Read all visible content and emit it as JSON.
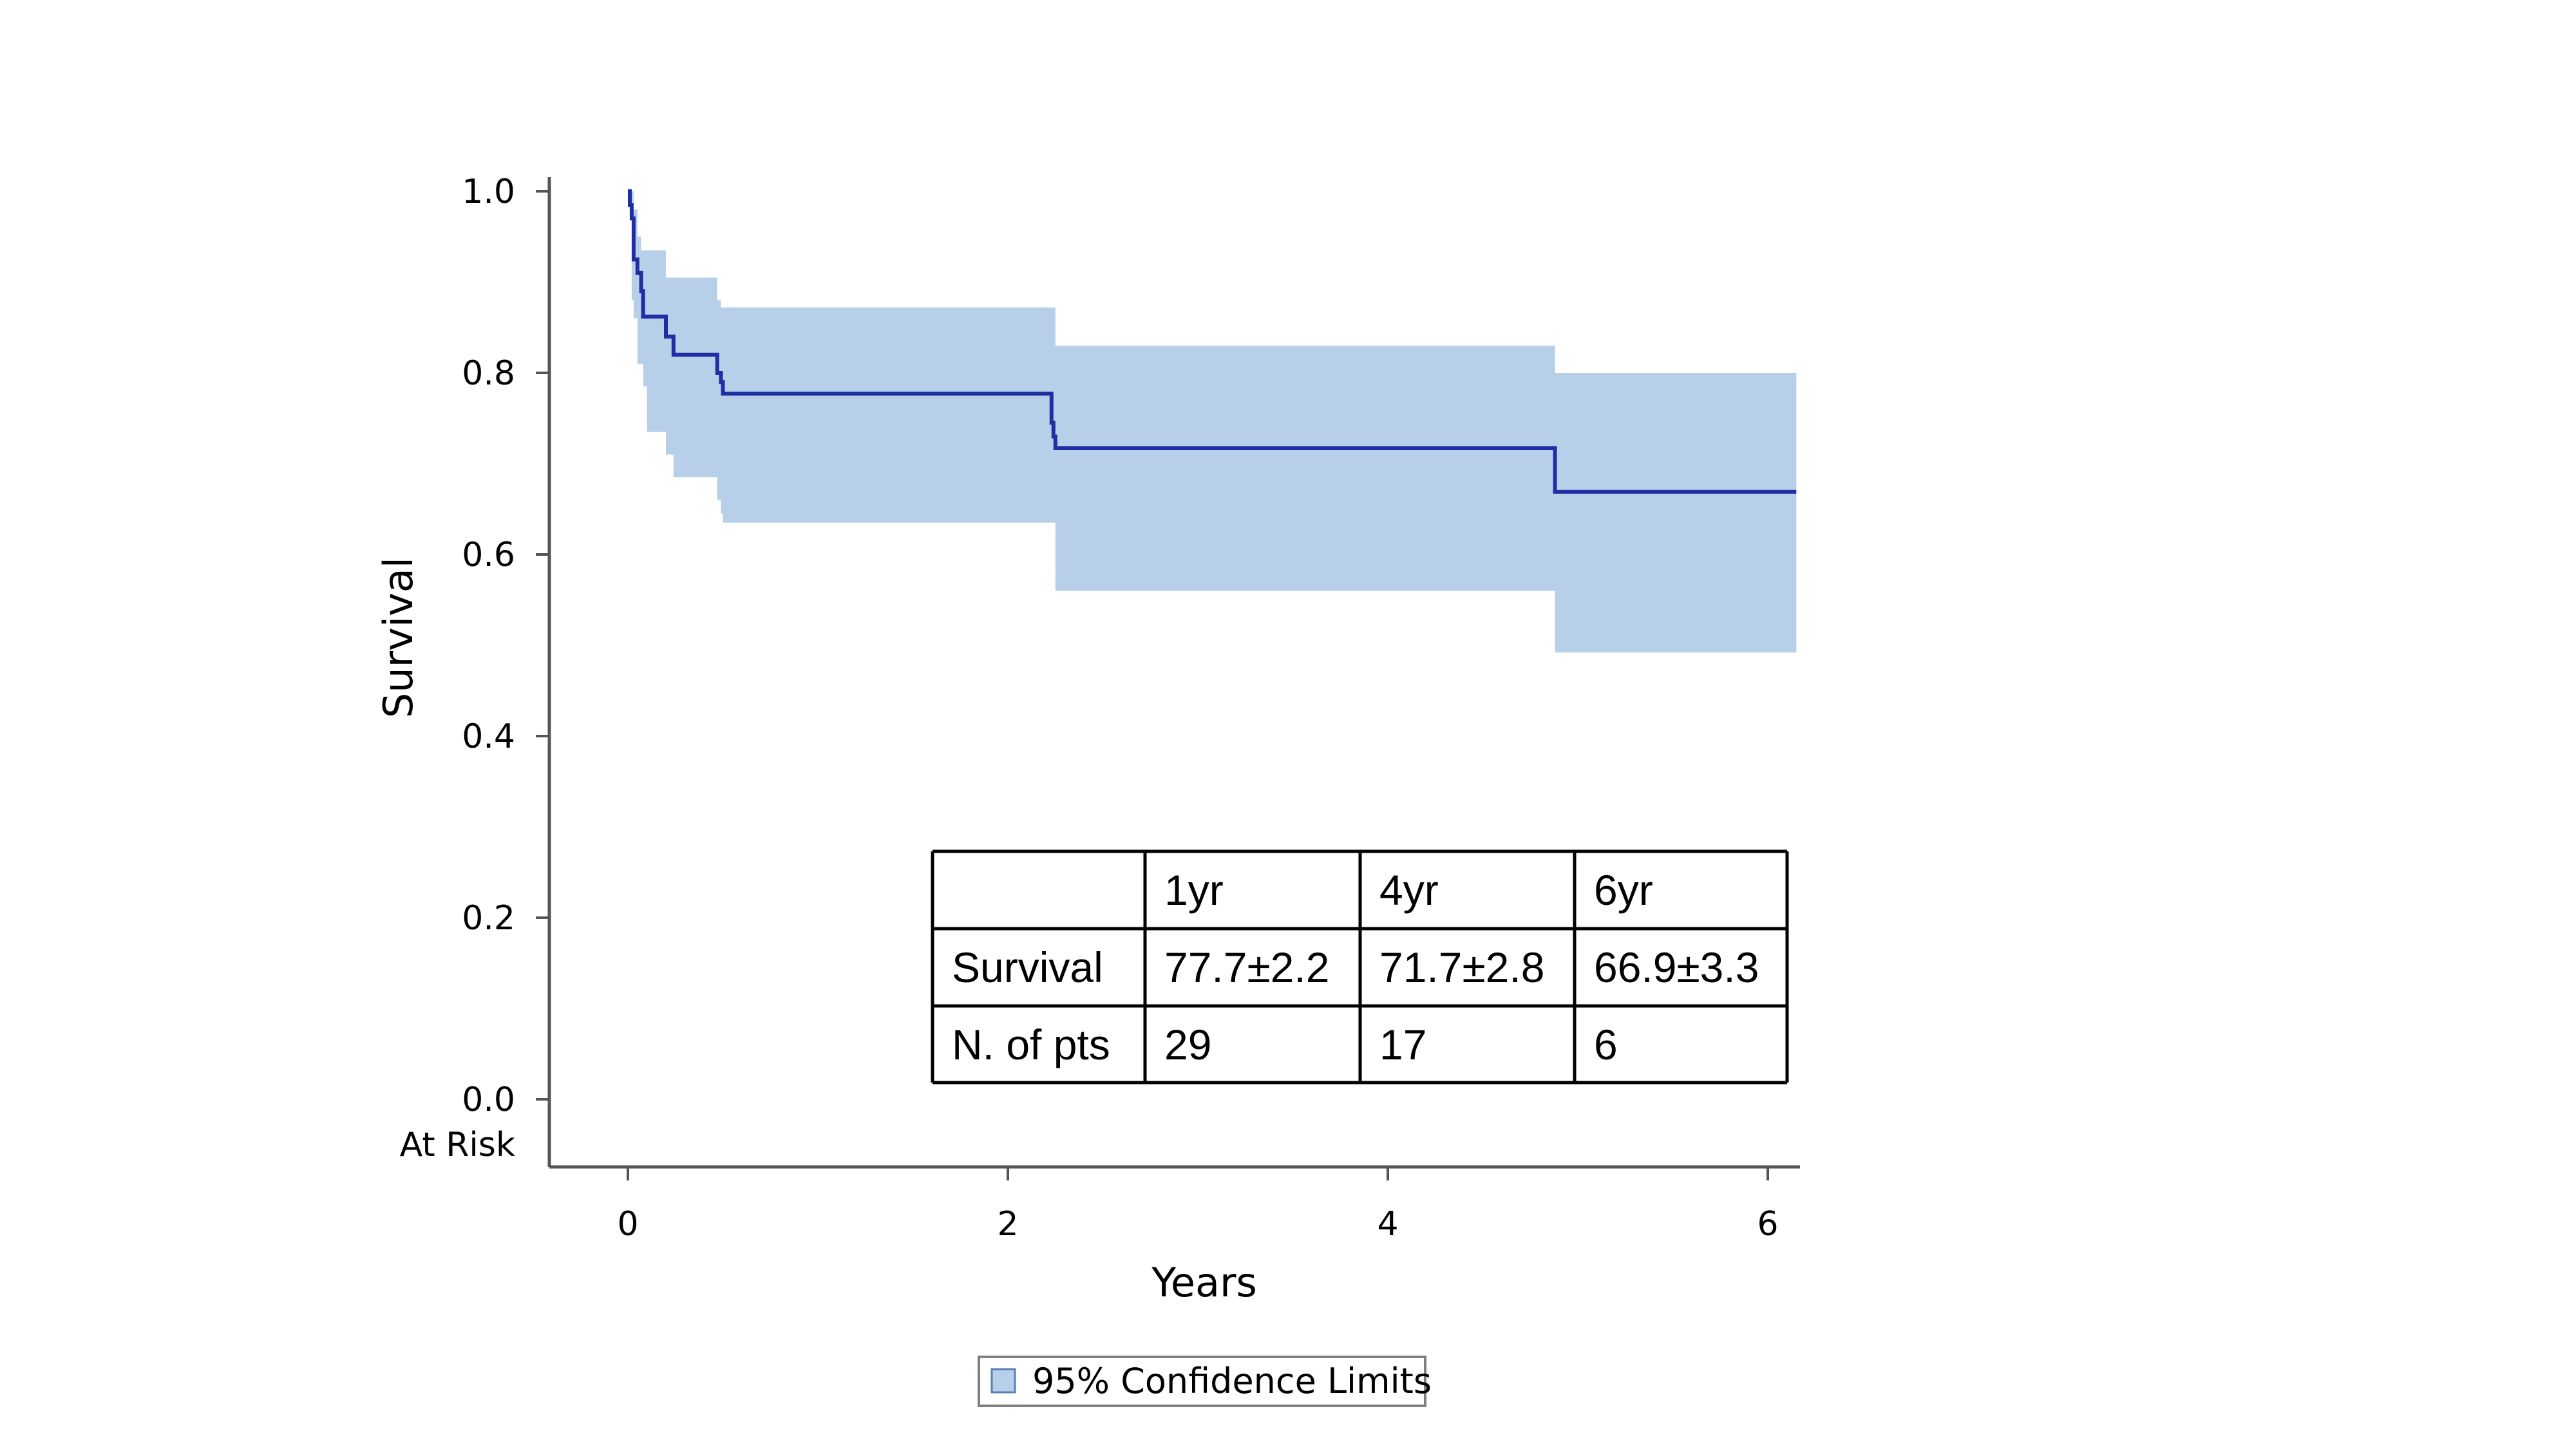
{
  "chart_data": {
    "type": "line",
    "title": "",
    "xlabel": "Years",
    "ylabel": "Survival",
    "xlim": [
      -0.42,
      6.15
    ],
    "ylim": [
      -0.07,
      1.02
    ],
    "xticks": [
      0,
      2,
      4,
      6
    ],
    "yticks": [
      0.0,
      0.2,
      0.4,
      0.6,
      0.8,
      1.0
    ],
    "xtick_labels": [
      "0",
      "2",
      "4",
      "6"
    ],
    "ytick_labels": [
      "0.0",
      "0.2",
      "0.4",
      "0.6",
      "0.8",
      "1.0"
    ],
    "at_risk_label": "At Risk",
    "grid": false,
    "series": [
      {
        "kind": "step",
        "color": "#1f2fa3",
        "x": [
          0,
          0.01,
          0.02,
          0.03,
          0.05,
          0.07,
          0.08,
          0.2,
          0.24,
          0.47,
          0.49,
          0.5,
          2.23,
          2.24,
          2.25,
          4.88,
          6.15
        ],
        "y": [
          1.0,
          0.985,
          0.97,
          0.925,
          0.91,
          0.89,
          0.862,
          0.84,
          0.82,
          0.8,
          0.79,
          0.777,
          0.745,
          0.73,
          0.717,
          0.669,
          0.669
        ]
      }
    ],
    "confidence_band": {
      "label": "95% Confidence Limits",
      "color": "#b7cfe9",
      "x": [
        0,
        0.02,
        0.03,
        0.05,
        0.07,
        0.08,
        0.1,
        0.2,
        0.24,
        0.47,
        0.49,
        0.5,
        2.23,
        2.25,
        4.88,
        6.15
      ],
      "upper": [
        1.0,
        1.0,
        0.98,
        0.95,
        0.935,
        0.935,
        0.935,
        0.905,
        0.905,
        0.88,
        0.872,
        0.872,
        0.872,
        0.83,
        0.8,
        0.8
      ],
      "lower": [
        1.0,
        0.88,
        0.86,
        0.81,
        0.81,
        0.785,
        0.735,
        0.71,
        0.685,
        0.66,
        0.645,
        0.635,
        0.635,
        0.56,
        0.492,
        0.492
      ]
    },
    "legend": {
      "position": "bottom-center",
      "entries": [
        "95% Confidence Limits"
      ]
    },
    "inset_table": {
      "position": "lower-right",
      "header": [
        "",
        "1yr",
        "4yr",
        "6yr"
      ],
      "rows": [
        [
          "Survival",
          "77.7±2.2",
          "71.7±2.8",
          "66.9±3.3"
        ],
        [
          "N. of pts",
          "29",
          "17",
          "6"
        ]
      ]
    }
  }
}
